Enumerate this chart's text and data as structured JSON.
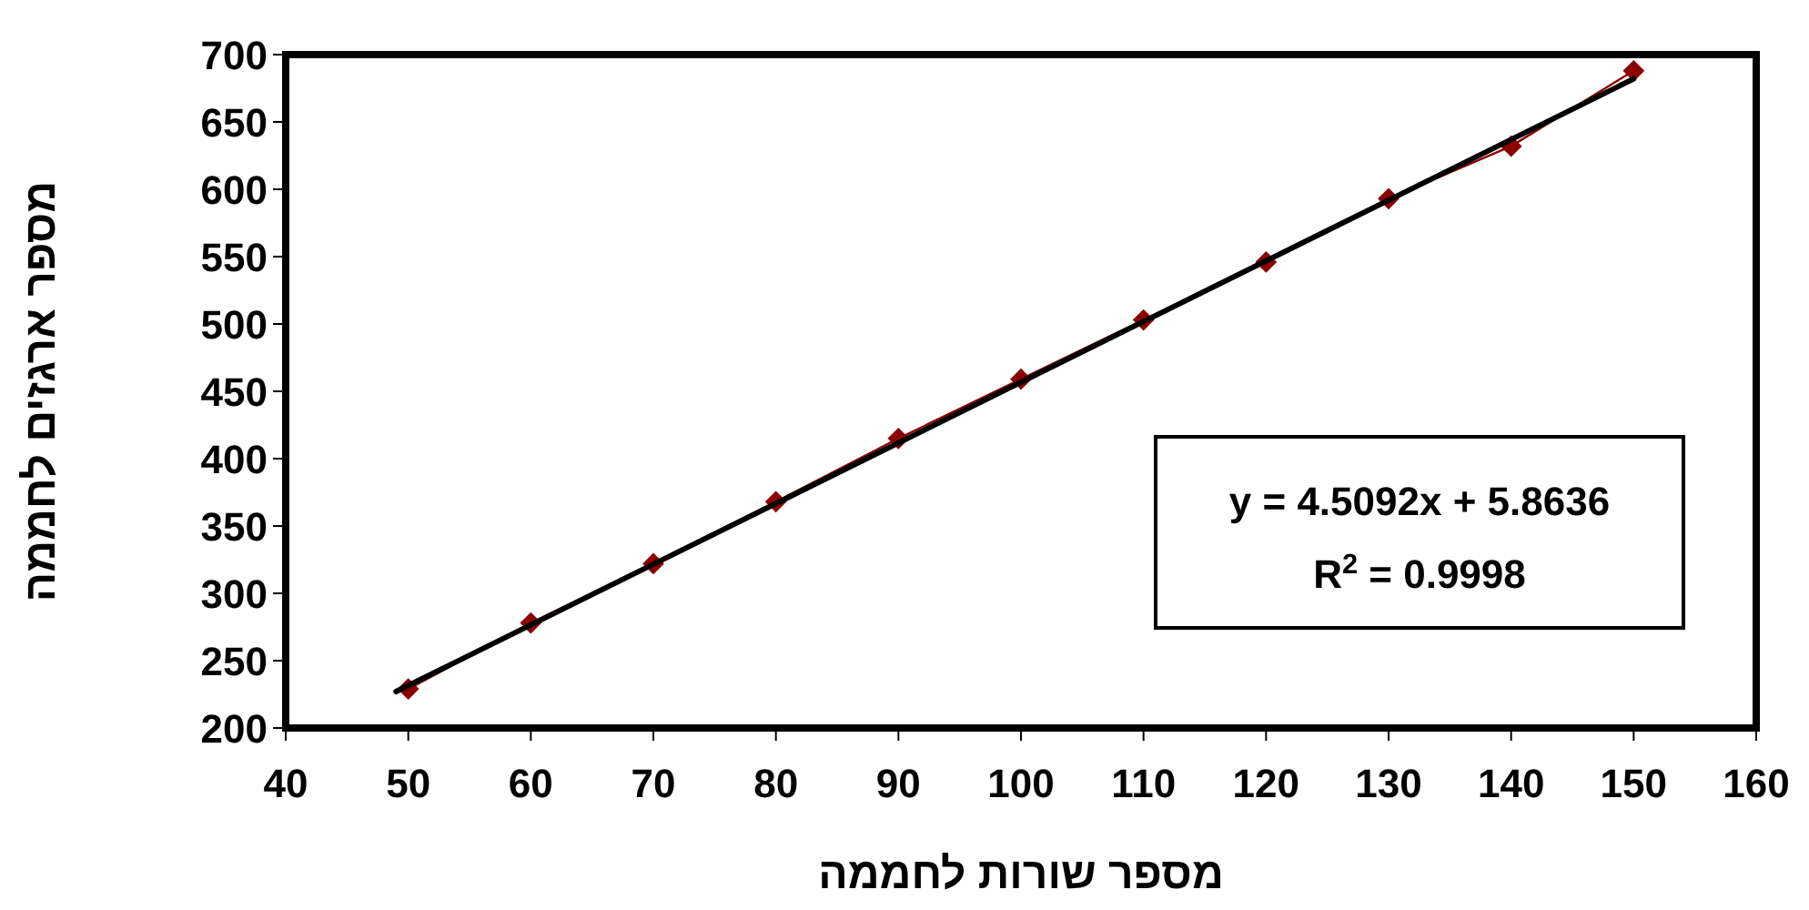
{
  "chart_data": {
    "type": "line",
    "xlabel": "מספר שורות לחממה",
    "ylabel": "מספר ארגזים לחממה",
    "xlim": [
      40,
      160
    ],
    "xticks": [
      40,
      50,
      60,
      70,
      80,
      90,
      100,
      110,
      120,
      130,
      140,
      150,
      160
    ],
    "ylim": [
      200,
      700
    ],
    "yticks": [
      200,
      250,
      300,
      350,
      400,
      450,
      500,
      550,
      600,
      650,
      700
    ],
    "grid": false,
    "series": [
      {
        "color": "#8b0000",
        "marker": "diamond",
        "x": [
          50,
          60,
          70,
          80,
          90,
          100,
          110,
          120,
          130,
          140,
          150
        ],
        "values": [
          229,
          278,
          322,
          368,
          415,
          459,
          503,
          546,
          593,
          632,
          688
        ]
      },
      {
        "type": "line",
        "color": "#000000",
        "marker": "none",
        "x": [
          49,
          150
        ],
        "values": [
          227,
          682
        ]
      }
    ],
    "annotations": [
      "y = 4.5092x + 5.8636",
      "R$^{2}$ = 0.9998"
    ]
  }
}
